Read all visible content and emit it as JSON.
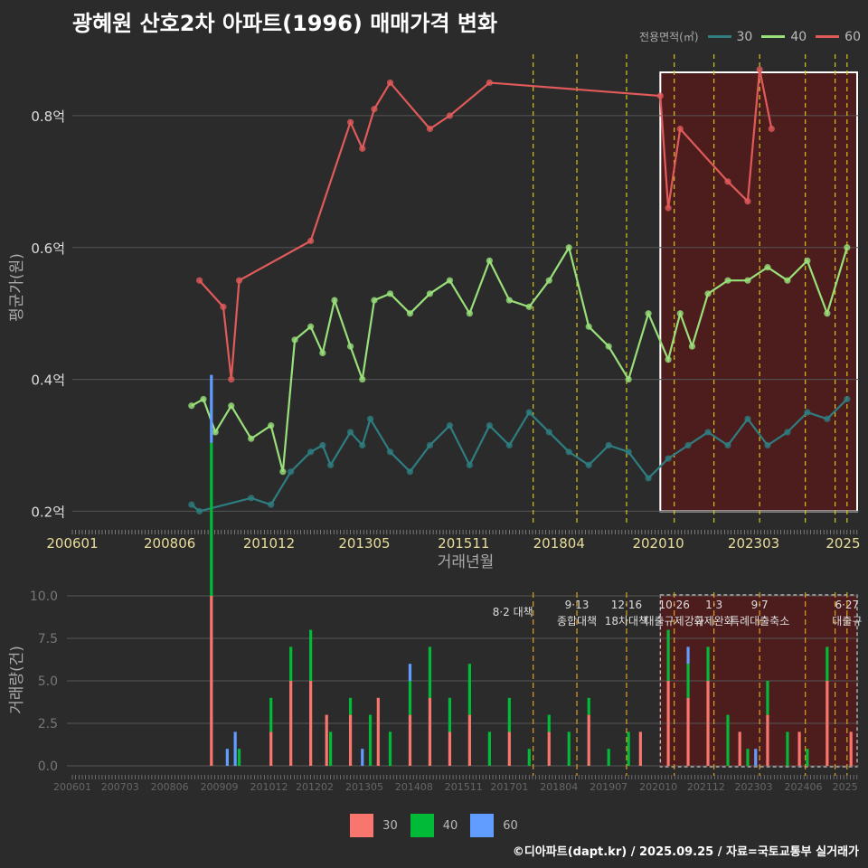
{
  "title": "광혜원 산호2차 아파트(1996) 매매가격 변화",
  "footer": "©디아파트(dapt.kr) / 2025.09.25 / 자료=국토교통부 실거래가",
  "colors": {
    "background": "#2b2b2b",
    "grid": "#555555",
    "policy_line": "#d4c51a",
    "highlight_fill": "#5a1a1a",
    "highlight_border": "#ffffff",
    "area30": "#2e7d80",
    "area40": "#99e07a",
    "area60": "#e05a5a",
    "bar30": "#f8766d",
    "bar40": "#00ba38",
    "bar60": "#619cff"
  },
  "legend_top": {
    "title": "전용면적(㎡)",
    "items": [
      {
        "label": "30",
        "color": "#2e7d80"
      },
      {
        "label": "40",
        "color": "#99e07a"
      },
      {
        "label": "60",
        "color": "#e05a5a"
      }
    ]
  },
  "legend_bottom": {
    "items": [
      {
        "label": "30",
        "color": "#f8766d"
      },
      {
        "label": "40",
        "color": "#00ba38"
      },
      {
        "label": "60",
        "color": "#619cff"
      }
    ]
  },
  "chart_data": [
    {
      "type": "line",
      "title": "평균가 추이",
      "xlabel": "거래년월",
      "ylabel": "평균가(원)",
      "x_ticks": [
        "200601",
        "200806",
        "201012",
        "201305",
        "201511",
        "201804",
        "202010",
        "202303",
        "2025"
      ],
      "y_ticks": [
        "0.2억",
        "0.4억",
        "0.6억",
        "0.8억"
      ],
      "y_tick_values": [
        0.2,
        0.4,
        0.6,
        0.8
      ],
      "ylim": [
        0.18,
        0.9
      ],
      "xlim": [
        2006.0,
        2025.8
      ],
      "highlight_range": [
        2020.8,
        2025.8
      ],
      "policy_dates": [
        2017.6,
        2018.7,
        2019.95,
        2021.15,
        2022.15,
        2023.3,
        2024.45,
        2025.2,
        2025.5
      ],
      "series": [
        {
          "name": "30",
          "x": [
            2009.0,
            2009.2,
            2010.5,
            2011.0,
            2011.5,
            2012.0,
            2012.3,
            2012.5,
            2013.0,
            2013.3,
            2013.5,
            2014.0,
            2014.5,
            2015.0,
            2015.5,
            2016.0,
            2016.5,
            2017.0,
            2017.5,
            2018.0,
            2018.5,
            2019.0,
            2019.5,
            2020.0,
            2020.5,
            2021.0,
            2021.5,
            2022.0,
            2022.5,
            2023.0,
            2023.5,
            2024.0,
            2024.5,
            2025.0,
            2025.5
          ],
          "values": [
            0.21,
            0.2,
            0.22,
            0.21,
            0.26,
            0.29,
            0.3,
            0.27,
            0.32,
            0.3,
            0.34,
            0.29,
            0.26,
            0.3,
            0.33,
            0.27,
            0.33,
            0.3,
            0.35,
            0.32,
            0.29,
            0.27,
            0.3,
            0.29,
            0.25,
            0.28,
            0.3,
            0.32,
            0.3,
            0.34,
            0.3,
            0.32,
            0.35,
            0.34,
            0.37
          ]
        },
        {
          "name": "40",
          "x": [
            2009.0,
            2009.3,
            2009.6,
            2010.0,
            2010.5,
            2011.0,
            2011.3,
            2011.6,
            2012.0,
            2012.3,
            2012.6,
            2013.0,
            2013.3,
            2013.6,
            2014.0,
            2014.5,
            2015.0,
            2015.5,
            2016.0,
            2016.5,
            2017.0,
            2017.5,
            2018.0,
            2018.5,
            2019.0,
            2019.5,
            2020.0,
            2020.5,
            2021.0,
            2021.3,
            2021.6,
            2022.0,
            2022.5,
            2023.0,
            2023.5,
            2024.0,
            2024.5,
            2025.0,
            2025.5
          ],
          "values": [
            0.36,
            0.37,
            0.32,
            0.36,
            0.31,
            0.33,
            0.26,
            0.46,
            0.48,
            0.44,
            0.52,
            0.45,
            0.4,
            0.52,
            0.53,
            0.5,
            0.53,
            0.55,
            0.5,
            0.58,
            0.52,
            0.51,
            0.55,
            0.6,
            0.48,
            0.45,
            0.4,
            0.5,
            0.43,
            0.5,
            0.45,
            0.53,
            0.55,
            0.55,
            0.57,
            0.55,
            0.58,
            0.5,
            0.6
          ]
        },
        {
          "name": "60",
          "x": [
            2009.2,
            2009.8,
            2010.0,
            2010.2,
            2012.0,
            2013.0,
            2013.3,
            2013.6,
            2014.0,
            2015.0,
            2015.5,
            2016.5,
            2020.8,
            2021.0,
            2021.3,
            2022.5,
            2023.0,
            2023.3,
            2023.6
          ],
          "values": [
            0.55,
            0.51,
            0.4,
            0.55,
            0.61,
            0.79,
            0.75,
            0.81,
            0.85,
            0.78,
            0.8,
            0.85,
            0.83,
            0.66,
            0.78,
            0.7,
            0.67,
            0.87,
            0.78
          ]
        }
      ]
    },
    {
      "type": "bar",
      "title": "거래량",
      "ylabel": "거래량(건)",
      "y_ticks": [
        "0.0",
        "2.5",
        "5.0",
        "7.5",
        "10.0"
      ],
      "y_tick_values": [
        0,
        2.5,
        5,
        7.5,
        10
      ],
      "ylim": [
        0,
        10.5
      ],
      "x_ticks": [
        "200601",
        "200703",
        "200806",
        "200909",
        "201012",
        "201202",
        "201305",
        "201408",
        "201511",
        "201701",
        "201804",
        "201907",
        "202010",
        "202112",
        "202303",
        "202406",
        "2025"
      ],
      "annotations": [
        {
          "date": "8·2 대책",
          "x": 2017.6
        },
        {
          "date": "9·13",
          "sub": "종합대책",
          "x": 2018.7
        },
        {
          "date": "12·16",
          "sub": "18차대책",
          "x": 2019.95
        },
        {
          "date": "10·26",
          "sub": "대출규제강화",
          "x": 2021.15
        },
        {
          "date": "1·3",
          "sub": "규제완화",
          "x": 2022.15
        },
        {
          "date": "9·7",
          "sub": "특례대출축소",
          "x": 2023.3
        },
        {
          "date": "6·27",
          "sub": "대출규",
          "x": 2025.5
        }
      ],
      "series": [
        {
          "name": "30",
          "x": [
            2009.5,
            2011.0,
            2011.5,
            2012.0,
            2012.4,
            2013.0,
            2013.7,
            2014.5,
            2015.0,
            2015.5,
            2016.0,
            2017.0,
            2018.0,
            2019.0,
            2020.3,
            2021.0,
            2021.5,
            2022.0,
            2022.8,
            2023.5,
            2024.3,
            2025.0,
            2025.6
          ],
          "values": [
            10,
            2,
            5,
            5,
            3,
            3,
            4,
            3,
            4,
            2,
            3,
            2,
            2,
            3,
            2,
            5,
            4,
            5,
            2,
            3,
            2,
            5,
            2
          ]
        },
        {
          "name": "40",
          "x": [
            2009.5,
            2010.2,
            2011.0,
            2011.5,
            2012.0,
            2012.5,
            2013.0,
            2013.5,
            2014.0,
            2014.5,
            2015.0,
            2015.5,
            2016.0,
            2016.5,
            2017.0,
            2017.5,
            2018.0,
            2018.5,
            2019.0,
            2019.5,
            2020.0,
            2021.0,
            2021.5,
            2022.0,
            2022.5,
            2023.0,
            2023.5,
            2024.0,
            2024.5,
            2025.0
          ],
          "values": [
            9,
            1,
            2,
            2,
            3,
            2,
            1,
            3,
            2,
            2,
            3,
            2,
            3,
            2,
            2,
            1,
            1,
            2,
            1,
            1,
            2,
            3,
            2,
            2,
            3,
            1,
            2,
            2,
            1,
            2
          ]
        },
        {
          "name": "60",
          "x": [
            2009.5,
            2009.9,
            2010.1,
            2013.3,
            2014.5,
            2021.5,
            2023.2
          ],
          "values": [
            4,
            1,
            2,
            1,
            1,
            1,
            1
          ]
        }
      ]
    }
  ]
}
